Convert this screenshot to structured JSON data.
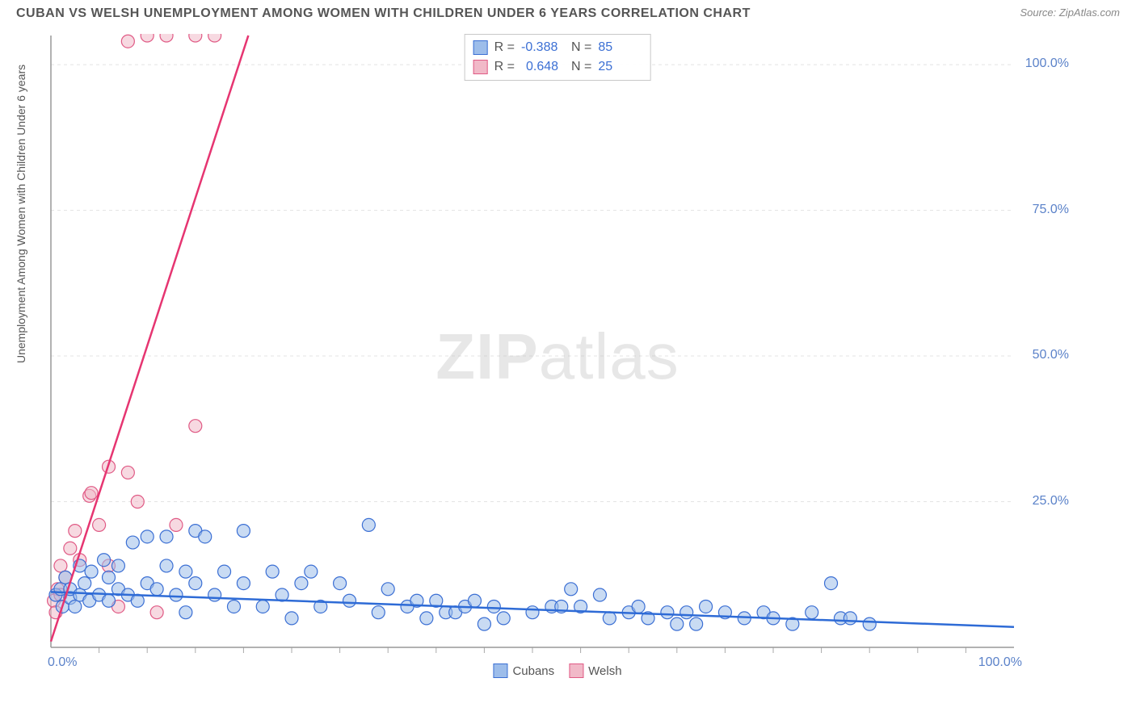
{
  "title": "CUBAN VS WELSH UNEMPLOYMENT AMONG WOMEN WITH CHILDREN UNDER 6 YEARS CORRELATION CHART",
  "source": "Source: ZipAtlas.com",
  "ylabel": "Unemployment Among Women with Children Under 6 years",
  "watermark_zip": "ZIP",
  "watermark_atlas": "atlas",
  "chart": {
    "type": "scatter",
    "xlim": [
      0,
      100
    ],
    "ylim": [
      0,
      105
    ],
    "x_origin_label": "0.0%",
    "x_max_label": "100.0%",
    "yticks": [
      25,
      50,
      75,
      100
    ],
    "ytick_labels": [
      "25.0%",
      "50.0%",
      "75.0%",
      "100.0%"
    ],
    "plot_bg": "#ffffff",
    "grid_color": "#e3e3e3",
    "axis_color": "#999999",
    "tick_color": "#aaaaaa",
    "marker_radius": 8,
    "marker_opacity": 0.55,
    "series": [
      {
        "name": "Cubans",
        "fill": "#9dbdea",
        "stroke": "#3b6fd4",
        "line_color": "#2e6bd6",
        "line_width": 2.5,
        "R": "-0.388",
        "N": "85",
        "trend": {
          "x1": 0,
          "y1": 9.5,
          "x2": 100,
          "y2": 3.5
        },
        "points": [
          [
            0.5,
            9
          ],
          [
            1,
            10
          ],
          [
            1.2,
            7
          ],
          [
            1.5,
            12
          ],
          [
            2,
            8.5
          ],
          [
            2,
            10
          ],
          [
            2.5,
            7
          ],
          [
            3,
            14
          ],
          [
            3,
            9
          ],
          [
            3.5,
            11
          ],
          [
            4,
            8
          ],
          [
            4.2,
            13
          ],
          [
            5,
            9
          ],
          [
            5.5,
            15
          ],
          [
            6,
            8
          ],
          [
            6,
            12
          ],
          [
            7,
            10
          ],
          [
            7,
            14
          ],
          [
            8,
            9
          ],
          [
            8.5,
            18
          ],
          [
            9,
            8
          ],
          [
            10,
            11
          ],
          [
            10,
            19
          ],
          [
            11,
            10
          ],
          [
            12,
            14
          ],
          [
            12,
            19
          ],
          [
            13,
            9
          ],
          [
            14,
            6
          ],
          [
            14,
            13
          ],
          [
            15,
            11
          ],
          [
            15,
            20
          ],
          [
            16,
            19
          ],
          [
            17,
            9
          ],
          [
            18,
            13
          ],
          [
            19,
            7
          ],
          [
            20,
            20
          ],
          [
            20,
            11
          ],
          [
            22,
            7
          ],
          [
            23,
            13
          ],
          [
            24,
            9
          ],
          [
            25,
            5
          ],
          [
            26,
            11
          ],
          [
            27,
            13
          ],
          [
            28,
            7
          ],
          [
            30,
            11
          ],
          [
            31,
            8
          ],
          [
            33,
            21
          ],
          [
            34,
            6
          ],
          [
            35,
            10
          ],
          [
            37,
            7
          ],
          [
            38,
            8
          ],
          [
            39,
            5
          ],
          [
            40,
            8
          ],
          [
            41,
            6
          ],
          [
            42,
            6
          ],
          [
            43,
            7
          ],
          [
            44,
            8
          ],
          [
            45,
            4
          ],
          [
            46,
            7
          ],
          [
            47,
            5
          ],
          [
            50,
            6
          ],
          [
            52,
            7
          ],
          [
            53,
            7
          ],
          [
            54,
            10
          ],
          [
            55,
            7
          ],
          [
            57,
            9
          ],
          [
            58,
            5
          ],
          [
            60,
            6
          ],
          [
            61,
            7
          ],
          [
            62,
            5
          ],
          [
            64,
            6
          ],
          [
            65,
            4
          ],
          [
            66,
            6
          ],
          [
            67,
            4
          ],
          [
            68,
            7
          ],
          [
            70,
            6
          ],
          [
            72,
            5
          ],
          [
            74,
            6
          ],
          [
            75,
            5
          ],
          [
            77,
            4
          ],
          [
            79,
            6
          ],
          [
            81,
            11
          ],
          [
            82,
            5
          ],
          [
            83,
            5
          ],
          [
            85,
            4
          ]
        ]
      },
      {
        "name": "Welsh",
        "fill": "#f1b9c8",
        "stroke": "#e05a85",
        "line_color": "#e63571",
        "line_width": 2.5,
        "R": "0.648",
        "N": "25",
        "trend": {
          "x1": 0,
          "y1": 1,
          "x2": 20.5,
          "y2": 105
        },
        "points": [
          [
            0.3,
            8
          ],
          [
            0.5,
            6
          ],
          [
            0.7,
            10
          ],
          [
            1,
            9
          ],
          [
            1,
            14
          ],
          [
            1.5,
            12
          ],
          [
            2,
            17
          ],
          [
            2.5,
            20
          ],
          [
            3,
            15
          ],
          [
            4,
            26
          ],
          [
            4.2,
            26.5
          ],
          [
            5,
            21
          ],
          [
            6,
            14
          ],
          [
            6,
            31
          ],
          [
            7,
            7
          ],
          [
            8,
            30
          ],
          [
            9,
            25
          ],
          [
            11,
            6
          ],
          [
            13,
            21
          ],
          [
            15,
            38
          ],
          [
            8,
            104
          ],
          [
            10,
            105
          ],
          [
            12,
            105
          ],
          [
            15,
            105
          ],
          [
            17,
            105
          ]
        ]
      }
    ]
  },
  "stats_legend": {
    "R_label": "R =",
    "N_label": "N ="
  },
  "bottom_legend": {
    "items": [
      "Cubans",
      "Welsh"
    ]
  }
}
